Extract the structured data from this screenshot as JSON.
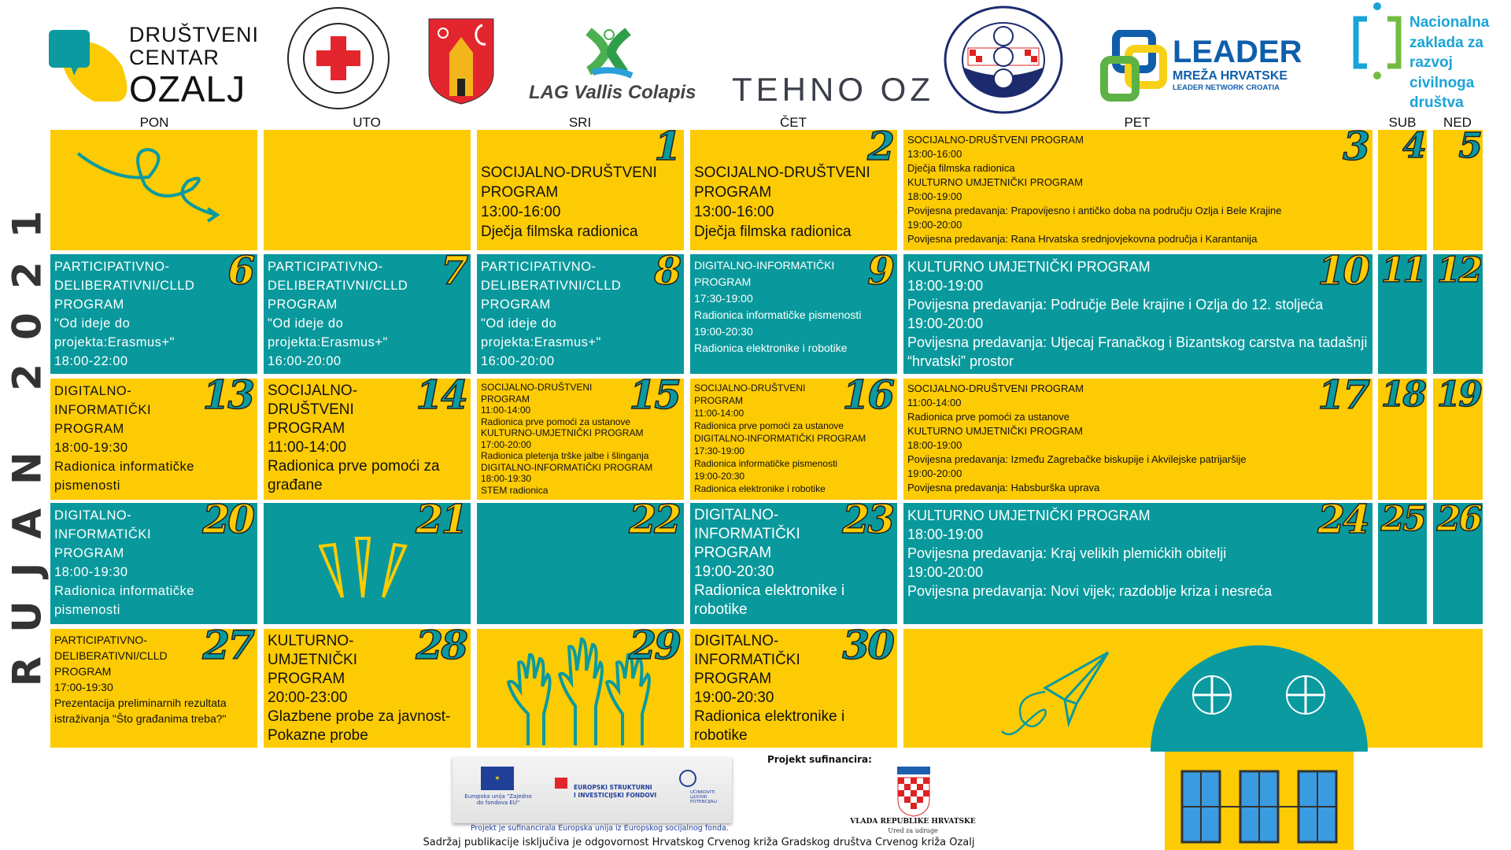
{
  "logos": {
    "drustveni_centar": [
      "DRUŠTVENI",
      "CENTAR",
      "OZALJ"
    ],
    "crveni_kriz": "HRVATSKI CRVENI KRIŽ · GRADSKO DRUŠTVO CRVENOG KRIŽA OZALJ",
    "lag": "LAG Vallis Colapis",
    "tehno": "TEHNO OZ",
    "zora": "UDRUGA ZA OČUVANJE KULTURNE I PRIRODNE BAŠTINE \"ZORA\" PRILIŠĆE 1925",
    "leader": {
      "title": "LEADER",
      "sub": "MREŽA HRVATSKE",
      "sub2": "LEADER NETWORK CROATIA"
    },
    "nacionalna": [
      "Nacionalna",
      "zaklada za",
      "razvoj",
      "civilnoga",
      "društva"
    ]
  },
  "colors": {
    "yellow": "#fdcb03",
    "teal": "#09999c"
  },
  "month_label": "RUJAN 2021",
  "day_headers": [
    "PON",
    "UTO",
    "SRI",
    "ČET",
    "PET",
    "SUB",
    "NED"
  ],
  "weeks": [
    [
      {
        "num": "",
        "color": "yellow",
        "icon": "squiggle-arrow-icon",
        "lines": []
      },
      {
        "num": "",
        "color": "yellow",
        "lines": []
      },
      {
        "num": "1",
        "color": "yellow",
        "lines": [
          "SOCIJALNO-DRUŠTVENI PROGRAM",
          "13:00-16:00",
          "Dječja filmska radionica"
        ]
      },
      {
        "num": "2",
        "color": "yellow",
        "lines": [
          "SOCIJALNO-DRUŠTVENI PROGRAM",
          "13:00-16:00",
          "Dječja filmska radionica"
        ]
      },
      {
        "num": "3",
        "color": "yellow",
        "lines": [
          "SOCIJALNO-DRUŠTVENI PROGRAM",
          "13:00-16:00",
          "Dječja filmska radionica",
          "KULTURNO UMJETNIČKI PROGRAM",
          "18:00-19:00",
          "Povijesna predavanja: Prapovijesno i antičko doba na području Ozlja i Bele Krajine",
          "19:00-20:00",
          "Povijesna predavanja: Rana Hrvatska srednjovjekovna područja i Karantanija"
        ]
      },
      {
        "num": "4",
        "color": "yellow",
        "lines": []
      },
      {
        "num": "5",
        "color": "yellow",
        "lines": []
      }
    ],
    [
      {
        "num": "6",
        "color": "teal",
        "lines": [
          "PARTICIPATIVNO-DELIBERATIVNI/CLLD PROGRAM",
          "\"Od ideje do projekta:Erasmus+\"",
          "18:00-22:00"
        ]
      },
      {
        "num": "7",
        "color": "teal",
        "lines": [
          "PARTICIPATIVNO-DELIBERATIVNI/CLLD PROGRAM",
          "\"Od ideje do projekta:Erasmus+\"",
          "16:00-20:00"
        ]
      },
      {
        "num": "8",
        "color": "teal",
        "lines": [
          "PARTICIPATIVNO-DELIBERATIVNI/CLLD PROGRAM",
          "\"Od ideje do projekta:Erasmus+\"",
          "16:00-20:00"
        ]
      },
      {
        "num": "9",
        "color": "teal",
        "lines": [
          "DIGITALNO-INFORMATIČKI PROGRAM",
          "17:30-19:00",
          "Radionica informatičke pismenosti",
          "19:00-20:30",
          "Radionica elektronike i robotike"
        ]
      },
      {
        "num": "10",
        "color": "teal",
        "lines": [
          "KULTURNO UMJETNIČKI PROGRAM",
          "18:00-19:00",
          "Povijesna predavanja: Područje Bele krajine i Ozlja do 12. stoljeća",
          "19:00-20:00",
          "Povijesna predavanja: Utjecaj Franačkog i Bizantskog carstva na tadašnji “hrvatski” prostor"
        ]
      },
      {
        "num": "11",
        "color": "teal",
        "lines": []
      },
      {
        "num": "12",
        "color": "teal",
        "lines": []
      }
    ],
    [
      {
        "num": "13",
        "color": "yellow",
        "lines": [
          "DIGITALNO-INFORMATIČKI PROGRAM",
          "18:00-19:30",
          "Radionica informatičke pismenosti"
        ]
      },
      {
        "num": "14",
        "color": "yellow",
        "lines": [
          "SOCIJALNO-DRUŠTVENI PROGRAM",
          "11:00-14:00",
          "Radionica prve pomoći za građane"
        ]
      },
      {
        "num": "15",
        "color": "yellow",
        "lines": [
          "SOCIJALNO-DRUŠTVENI PROGRAM",
          "11:00-14:00",
          "Radionica prve pomoći za ustanove",
          "KULTURNO-UMJETNIČKI PROGRAM",
          "17:00-20:00",
          "Radionica pletenja trške jalbe i šlinganja",
          "DIGITALNO-INFORMATIČKI PROGRAM",
          "18:00-19:30",
          "STEM radionica"
        ]
      },
      {
        "num": "16",
        "color": "yellow",
        "lines": [
          "SOCIJALNO-DRUŠTVENI PROGRAM",
          "11:00-14:00",
          "Radionica prve pomoći za ustanove",
          "DIGITALNO-INFORMATIČKI PROGRAM",
          "17:30-19:00",
          "Radionica informatičke pismenosti",
          "19:00-20:30",
          "Radionica elektronike i robotike"
        ]
      },
      {
        "num": "17",
        "color": "yellow",
        "lines": [
          "SOCIJALNO-DRUŠTVENI PROGRAM",
          "11:00-14:00",
          "Radionica prve pomoći za ustanove",
          "KULTURNO UMJETNIČKI PROGRAM",
          "18:00-19:00",
          "Povijesna predavanja: Između Zagrebačke biskupije i Akvilejske patrijaršije",
          "19:00-20:00",
          "Povijesna predavanja: Habsburška uprava"
        ]
      },
      {
        "num": "18",
        "color": "yellow",
        "lines": []
      },
      {
        "num": "19",
        "color": "yellow",
        "lines": []
      }
    ],
    [
      {
        "num": "20",
        "color": "teal",
        "lines": [
          "DIGITALNO-INFORMATIČKI PROGRAM",
          "18:00-19:30",
          "Radionica informatičke pismenosti"
        ]
      },
      {
        "num": "21",
        "color": "teal",
        "icon": "sparkle-lines-icon",
        "lines": []
      },
      {
        "num": "22",
        "color": "teal",
        "lines": []
      },
      {
        "num": "23",
        "color": "teal",
        "lines": [
          "DIGITALNO-INFORMATIČKI PROGRAM",
          "19:00-20:30",
          "Radionica elektronike i robotike"
        ]
      },
      {
        "num": "24",
        "color": "teal",
        "lines": [
          "KULTURNO UMJETNIČKI PROGRAM",
          "18:00-19:00",
          "Povijesna predavanja: Kraj velikih plemićkih obitelji",
          "19:00-20:00",
          "Povijesna predavanja: Novi vijek; razdoblje kriza i nesreća"
        ]
      },
      {
        "num": "25",
        "color": "teal",
        "lines": []
      },
      {
        "num": "26",
        "color": "teal",
        "lines": []
      }
    ],
    [
      {
        "num": "27",
        "color": "yellow",
        "lines": [
          "PARTICIPATIVNO-DELIBERATIVNI/CLLD PROGRAM",
          "17:00-19:30",
          "Prezentacija preliminarnih rezultata istraživanja \"Što građanima treba?\""
        ]
      },
      {
        "num": "28",
        "color": "yellow",
        "lines": [
          "KULTURNO-UMJETNIČKI PROGRAM",
          "20:00-23:00",
          "Glazbene probe za javnost-Pokazne probe"
        ]
      },
      {
        "num": "29",
        "color": "yellow",
        "icon": "raised-hands-icon",
        "lines": []
      },
      {
        "num": "30",
        "color": "yellow",
        "lines": [
          "DIGITALNO-INFORMATIČKI PROGRAM",
          "19:00-20:30",
          "Radionica elektronike i robotike"
        ]
      }
    ]
  ],
  "footer": {
    "eu_caption": "Europska unija \"Zajedno do fondova EU\"",
    "esif": [
      "EUROPSKI STRUKTURNI",
      "I INVESTICIJSKI FONDOVI"
    ],
    "esf": "UČINKOVITI LJUDSKI POTENCIJALI",
    "cofinanced_eu": "Projekt je sufinancirala Europska unija iz Europskog socijalnog fonda.",
    "cofinanced_by": "Projekt sufinancira:",
    "gov": "VLADA REPUBLIKE HRVATSKE",
    "gov_office": "Ured za udruge",
    "disclaimer": "Sadržaj publikacije isključiva je odgovornost Hrvatskog Crvenog križa Gradskog društva Crvenog križa Ozalj"
  }
}
